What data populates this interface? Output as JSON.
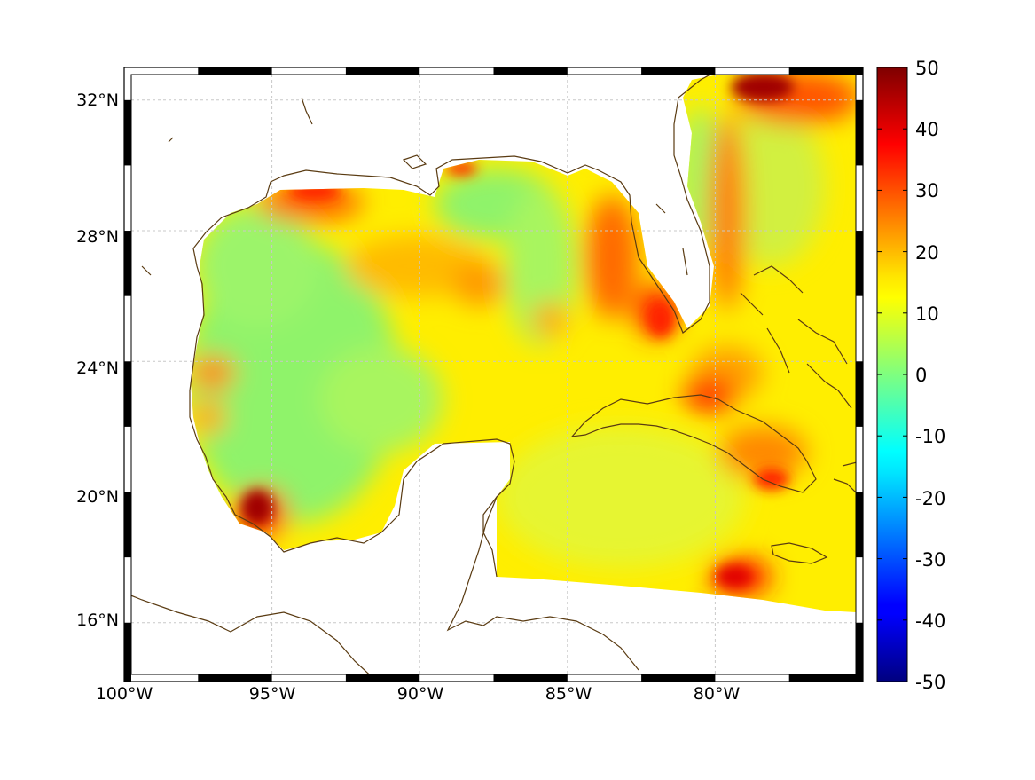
{
  "map": {
    "lon_range": [
      -100,
      -75
    ],
    "lat_range": [
      14.2,
      33
    ],
    "lon_ticks": [
      -100,
      -95,
      -90,
      -85,
      -80
    ],
    "lat_ticks": [
      16,
      20,
      24,
      28,
      32
    ],
    "lon_tick_labels": [
      "100°W",
      "95°W",
      "90°W",
      "85°W",
      "80°W"
    ],
    "lat_tick_labels": [
      "16°N",
      "20°N",
      "24°N",
      "28°N",
      "32°N"
    ],
    "grid": true,
    "frame": "black-white checkered border",
    "coastline_color": "#5a3b12",
    "land_color": "#ffffff",
    "field_colors": {
      "green": "#8ff36a",
      "yellow": "#ffee00",
      "orange": "#ffaa00",
      "red": "#ff3300",
      "dark_red": "#a00000"
    }
  },
  "colorbar": {
    "min": -50,
    "max": 50,
    "ticks": [
      "50",
      "40",
      "30",
      "20",
      "10",
      "0",
      "-10",
      "-20",
      "-30",
      "-40",
      "-50"
    ],
    "colormap": "jet"
  }
}
